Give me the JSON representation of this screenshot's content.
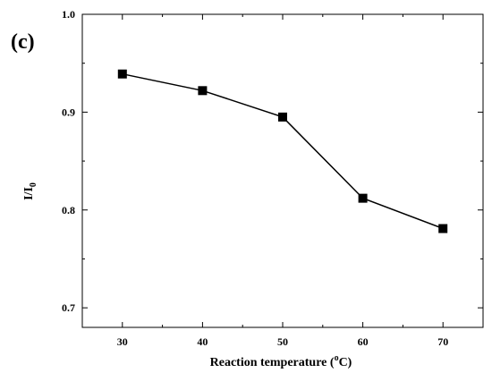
{
  "panel_label": "(c)",
  "chart_data": {
    "type": "line",
    "x": [
      30,
      40,
      50,
      60,
      70
    ],
    "series": [
      {
        "values": [
          0.939,
          0.922,
          0.895,
          0.812,
          0.781
        ],
        "marker": "square",
        "color": "#000000"
      }
    ],
    "xlabel": {
      "prefix": "Reaction temperature (",
      "sup": "o",
      "suffix": "C)"
    },
    "ylabel": {
      "main": "I/I",
      "sub": "0"
    },
    "xlim": [
      25,
      75
    ],
    "ylim": [
      0.68,
      1.0
    ],
    "xticks": [
      30,
      40,
      50,
      60,
      70
    ],
    "yticks": [
      "0.7",
      "0.8",
      "0.9",
      "1.0"
    ],
    "ytick_values": [
      0.7,
      0.8,
      0.9,
      1.0
    ],
    "grid": false,
    "legend": "none"
  }
}
